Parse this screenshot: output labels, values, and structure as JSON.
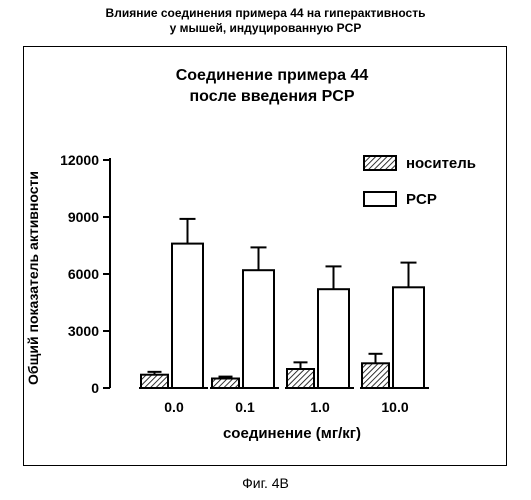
{
  "header": {
    "title_line1": "Влияние соединения примера 44 на гиперактивность",
    "title_line2": "у мышей, индуцированную PCP"
  },
  "figure_caption": "Фиг. 4B",
  "chart_data": {
    "type": "bar",
    "title_lines": [
      "Соединение примера 44",
      "после введения PCP"
    ],
    "xlabel": "соединение (мг/кг)",
    "ylabel": "Общий показатель активности",
    "categories": [
      "0.0",
      "0.1",
      "1.0",
      "10.0"
    ],
    "ylim": [
      0,
      12000
    ],
    "yticks": [
      0,
      3000,
      6000,
      9000,
      12000
    ],
    "grid": false,
    "legend_position": "top-right",
    "series": [
      {
        "name": "носитель",
        "pattern": "hatched",
        "values": [
          700,
          500,
          1000,
          1300
        ],
        "errors": [
          150,
          100,
          350,
          500
        ]
      },
      {
        "name": "PCP",
        "pattern": "open",
        "values": [
          7600,
          6200,
          5200,
          5300
        ],
        "errors": [
          1300,
          1200,
          1200,
          1300
        ]
      }
    ]
  }
}
